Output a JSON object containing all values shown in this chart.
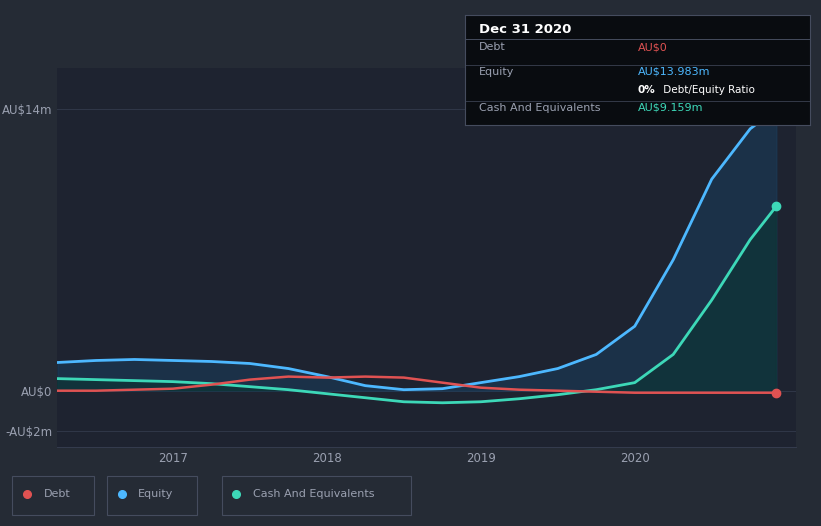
{
  "bg_color": "#252b35",
  "plot_bg_color": "#1e2330",
  "grid_color": "#353c4e",
  "title_box": {
    "date": "Dec 31 2020",
    "debt_label": "Debt",
    "debt_value": "AU$0",
    "debt_color": "#e05252",
    "equity_label": "Equity",
    "equity_value": "AU$13.983m",
    "equity_color": "#4db8ff",
    "ratio_bold": "0%",
    "ratio_rest": " Debt/Equity Ratio",
    "ratio_color": "#ffffff",
    "cash_label": "Cash And Equivalents",
    "cash_value": "AU$9.159m",
    "cash_color": "#3dd8b8",
    "box_bg": "#090c10",
    "box_border": "#454c5e",
    "text_color": "#9aa0b0"
  },
  "yticks": [
    "AU$14m",
    "AU$0",
    "-AU$2m"
  ],
  "ytick_values": [
    14,
    0,
    -2
  ],
  "xtick_positions": [
    2017,
    2018,
    2019,
    2020
  ],
  "xtick_labels": [
    "2017",
    "2018",
    "2019",
    "2020"
  ],
  "xlim": [
    2016.25,
    2021.05
  ],
  "ylim": [
    -2.8,
    16.0
  ],
  "legend_labels": [
    "Debt",
    "Equity",
    "Cash And Equivalents"
  ],
  "legend_colors": [
    "#e05252",
    "#4db8ff",
    "#3dd8b8"
  ],
  "debt_color": "#e05252",
  "equity_color": "#4db8ff",
  "equity_fill_color": "#1a3d5c",
  "cash_color": "#3dd8b8",
  "cash_fill_color": "#0d3535",
  "x": [
    2016.25,
    2016.5,
    2016.75,
    2017.0,
    2017.25,
    2017.5,
    2017.75,
    2018.0,
    2018.25,
    2018.5,
    2018.75,
    2019.0,
    2019.25,
    2019.5,
    2019.75,
    2020.0,
    2020.25,
    2020.5,
    2020.75,
    2020.92
  ],
  "debt": [
    0.0,
    0.0,
    0.05,
    0.1,
    0.3,
    0.55,
    0.7,
    0.65,
    0.7,
    0.65,
    0.4,
    0.15,
    0.05,
    0.0,
    -0.05,
    -0.1,
    -0.1,
    -0.1,
    -0.1,
    -0.1
  ],
  "equity": [
    1.4,
    1.5,
    1.55,
    1.5,
    1.45,
    1.35,
    1.1,
    0.7,
    0.25,
    0.05,
    0.1,
    0.4,
    0.7,
    1.1,
    1.8,
    3.2,
    6.5,
    10.5,
    13.0,
    13.983
  ],
  "cash": [
    0.6,
    0.55,
    0.5,
    0.45,
    0.35,
    0.2,
    0.05,
    -0.15,
    -0.35,
    -0.55,
    -0.6,
    -0.55,
    -0.4,
    -0.2,
    0.05,
    0.4,
    1.8,
    4.5,
    7.5,
    9.159
  ]
}
